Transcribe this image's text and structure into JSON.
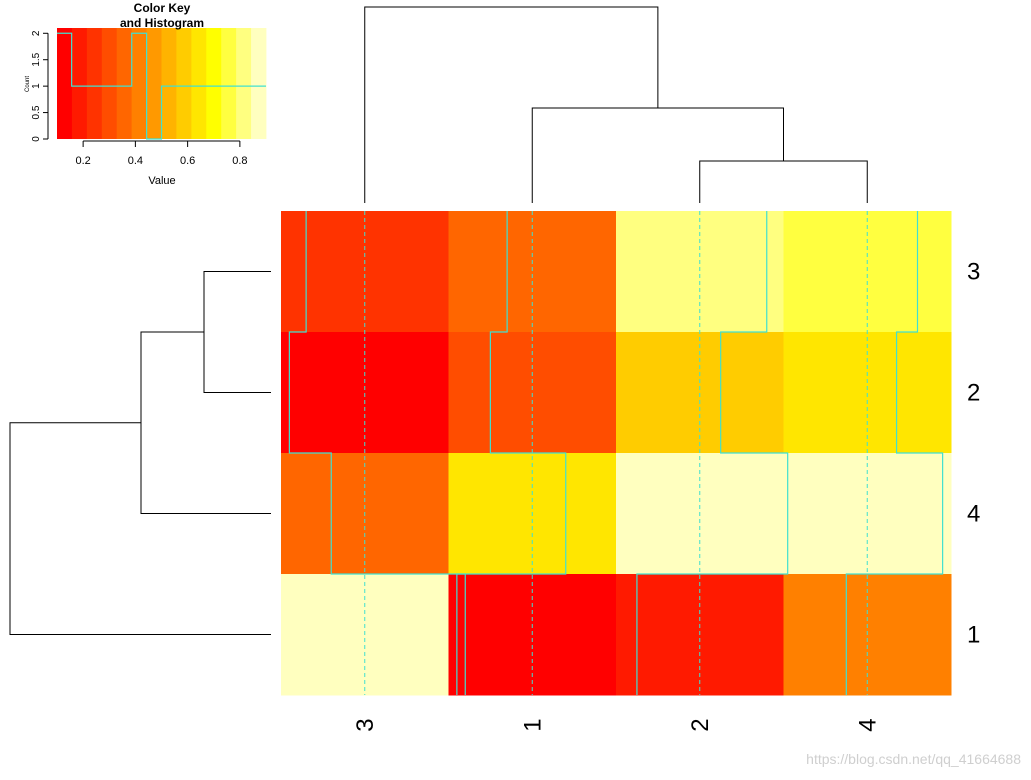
{
  "chart_data": {
    "type": "heatmap",
    "rows": [
      "3",
      "2",
      "4",
      "1"
    ],
    "columns": [
      "3",
      "1",
      "2",
      "4"
    ],
    "values": [
      [
        0.22,
        0.38,
        0.82,
        0.74
      ],
      [
        0.14,
        0.3,
        0.6,
        0.64
      ],
      [
        0.34,
        0.66,
        0.92,
        0.86
      ],
      [
        0.98,
        0.14,
        0.2,
        0.4
      ]
    ],
    "row_dendrogram": true,
    "column_dendrogram": true,
    "trace": "column",
    "trace_color": "#40e0d0",
    "palette": "heat",
    "color_key": {
      "title_line1": "Color Key",
      "title_line2": "and Histogram",
      "xlabel": "Value",
      "ylabel": "Count",
      "xlim": [
        0.1,
        0.9
      ],
      "ylim": [
        0,
        2.1
      ],
      "x_ticks": [
        "0.2",
        "0.4",
        "0.6",
        "0.8"
      ],
      "x_tick_values": [
        0.2,
        0.4,
        0.6,
        0.8
      ],
      "y_ticks": [
        "0",
        "0.5",
        "1",
        "1.5",
        "2"
      ],
      "y_tick_values": [
        0,
        0.5,
        1,
        1.5,
        2
      ],
      "hist_breaks": [
        0.1,
        0.156,
        0.214,
        0.271,
        0.329,
        0.386,
        0.443,
        0.5,
        0.557,
        0.614,
        0.671,
        0.729,
        0.786,
        0.843,
        0.9
      ],
      "hist_counts": [
        2,
        1,
        1,
        1,
        1,
        2,
        0,
        1,
        1,
        1,
        1,
        1,
        1,
        1
      ]
    }
  },
  "watermark": "https://blog.csdn.net/qq_41664688"
}
